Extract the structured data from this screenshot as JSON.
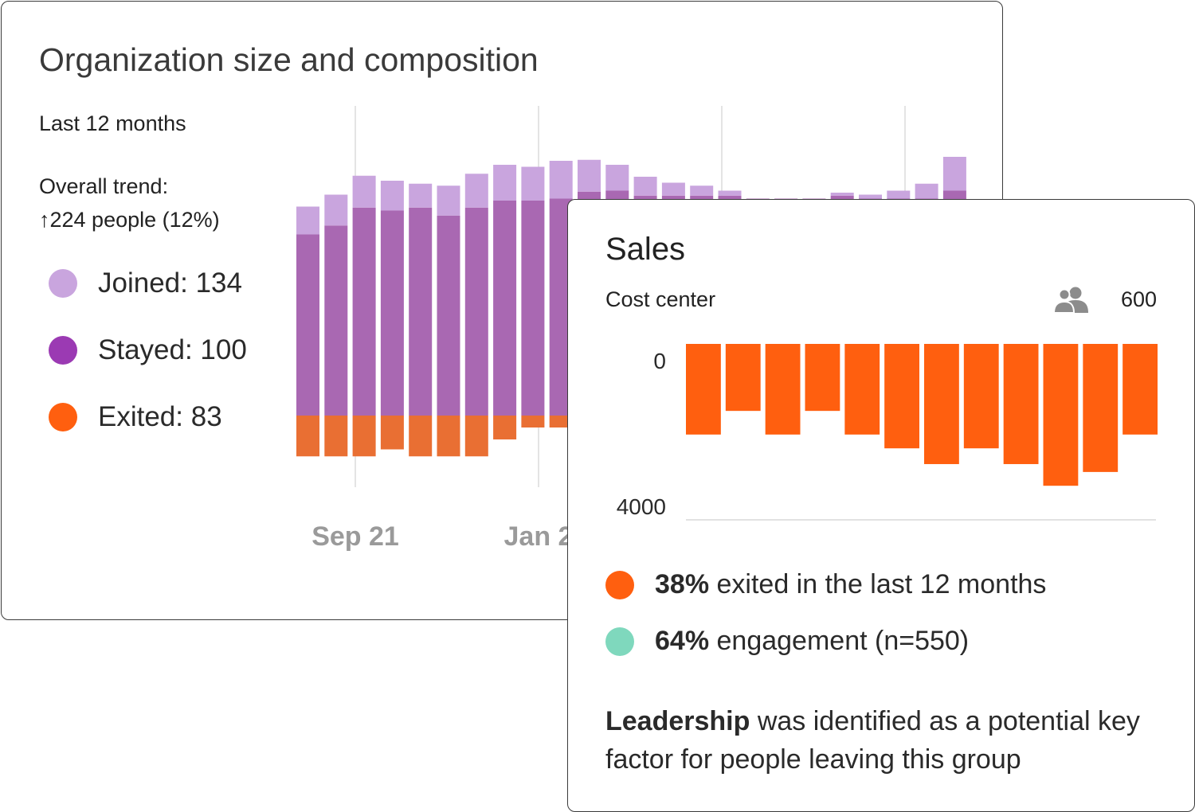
{
  "org_card": {
    "title": "Organization size and composition",
    "period": "Last 12 months",
    "trend_label": "Overall trend:",
    "trend_value": "↑224 people (12%)",
    "legend": [
      {
        "label": "Joined: 134",
        "color": "#c9a5de"
      },
      {
        "label": "Stayed: 100",
        "color": "#9b3ab3"
      },
      {
        "label": "Exited: 83",
        "color": "#ff5f0f"
      }
    ]
  },
  "sales_card": {
    "title": "Sales",
    "subtitle": "Cost center",
    "people_count": "600",
    "people_icon": "people-icon",
    "stat_exited_bold": "38%",
    "stat_exited_text": " exited in the last 12 months",
    "stat_engagement_bold": "64%",
    "stat_engagement_text": " engagement (n=550)",
    "exited_color": "#ff5f0f",
    "engagement_color": "#7fd8bd",
    "note_bold": "Leadership",
    "note_text": " was identified as a potential key factor for people leaving this group"
  },
  "chart_data": [
    {
      "type": "bar",
      "title": "Organization size and composition",
      "stacked": true,
      "x_tick_labels": [
        "Sep 21",
        "Jan 2"
      ],
      "y_ticks_shown": false,
      "ylim": [
        -115,
        270
      ],
      "grid": "vertical",
      "colors": {
        "Joined": "#c9a5de",
        "Stayed": "#a968b2",
        "Exited": "#e96f33"
      },
      "series": [
        {
          "name": "Joined",
          "values": [
            28,
            31,
            32,
            30,
            24,
            30,
            34,
            36,
            34,
            38,
            32,
            26,
            19,
            13,
            10,
            5,
            0,
            0,
            0,
            3,
            4,
            8,
            15,
            34
          ]
        },
        {
          "name": "Stayed",
          "values": [
            182,
            191,
            209,
            206,
            209,
            201,
            209,
            216,
            216,
            218,
            225,
            226,
            221,
            221,
            221,
            221,
            218,
            218,
            218,
            221,
            218,
            218,
            218,
            226
          ]
        },
        {
          "name": "Exited",
          "values": [
            -41,
            -41,
            -41,
            -34,
            -41,
            -41,
            -41,
            -24,
            -12,
            -12,
            -16,
            -16,
            -16,
            -16,
            -16,
            -16,
            -16,
            -16,
            -16,
            -16,
            -16,
            -16,
            -16,
            -16
          ]
        }
      ]
    },
    {
      "type": "bar",
      "title": "Sales",
      "orientation": "downward",
      "ylim": [
        0,
        4000
      ],
      "y_tick_labels": [
        "0",
        "4000"
      ],
      "values": [
        2300,
        1700,
        2300,
        1700,
        2300,
        2650,
        3050,
        2650,
        3050,
        3600,
        3250,
        2300
      ],
      "color": "#ff5f0f"
    }
  ]
}
